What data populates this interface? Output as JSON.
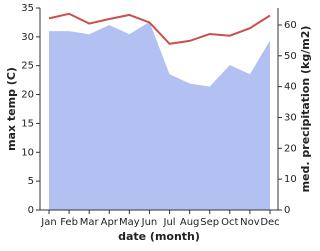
{
  "chart_data": {
    "type": "line",
    "x_label": "date (month)",
    "y_label": "max temp (C)",
    "y2_label": "med. precipitation (kg/m2)",
    "categories": [
      "Jan",
      "Feb",
      "Mar",
      "Apr",
      "May",
      "Jun",
      "Jul",
      "Aug",
      "Sep",
      "Oct",
      "Nov",
      "Dec"
    ],
    "series": [
      {
        "name": "med. precipitation",
        "type": "area",
        "axis": "y2",
        "color": "#b3c0f2",
        "values": [
          58,
          58,
          57,
          60,
          57,
          61,
          44,
          41,
          40,
          47,
          44,
          55
        ]
      },
      {
        "name": "max temp",
        "type": "line",
        "color": "#c9504c",
        "values": [
          33.2,
          34,
          32.3,
          33.1,
          33.8,
          32.5,
          28.8,
          29.3,
          30.5,
          30.2,
          31.5,
          33.7
        ]
      }
    ],
    "ylim": [
      0,
      35
    ],
    "yticks": [
      0,
      5,
      10,
      15,
      20,
      25,
      30,
      35
    ],
    "y2lim": [
      0,
      65.5
    ],
    "y2ticks": [
      0,
      10,
      20,
      30,
      40,
      50,
      60
    ]
  }
}
